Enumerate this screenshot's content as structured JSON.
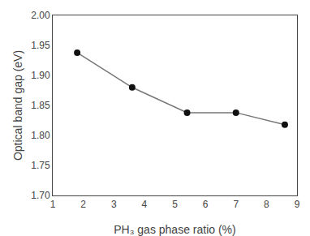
{
  "chart_data": {
    "type": "line",
    "xlabel": "PH₃ gas phase ratio (%)",
    "ylabel": "Optical band gap (eV)",
    "x": [
      1.8,
      3.6,
      5.4,
      7.0,
      8.6
    ],
    "values": [
      1.938,
      1.88,
      1.838,
      1.838,
      1.818
    ],
    "color": "#777777",
    "colors": [
      "#111111",
      "#111111",
      "#111111",
      "#111111",
      "#111111"
    ],
    "marker": "circle",
    "xlim": [
      1,
      9
    ],
    "xticks": [
      1,
      2,
      3,
      4,
      5,
      6,
      7,
      8,
      9
    ],
    "ylim": [
      1.7,
      2.0
    ],
    "yticks": [
      {
        "value": 1.7,
        "label": "1.70"
      },
      1.75,
      {
        "value": 1.8,
        "label": "1.80"
      },
      1.85,
      {
        "value": 1.9,
        "label": "1.90"
      },
      1.95,
      {
        "value": 2.0,
        "label": "2.00"
      }
    ],
    "grid": false
  }
}
